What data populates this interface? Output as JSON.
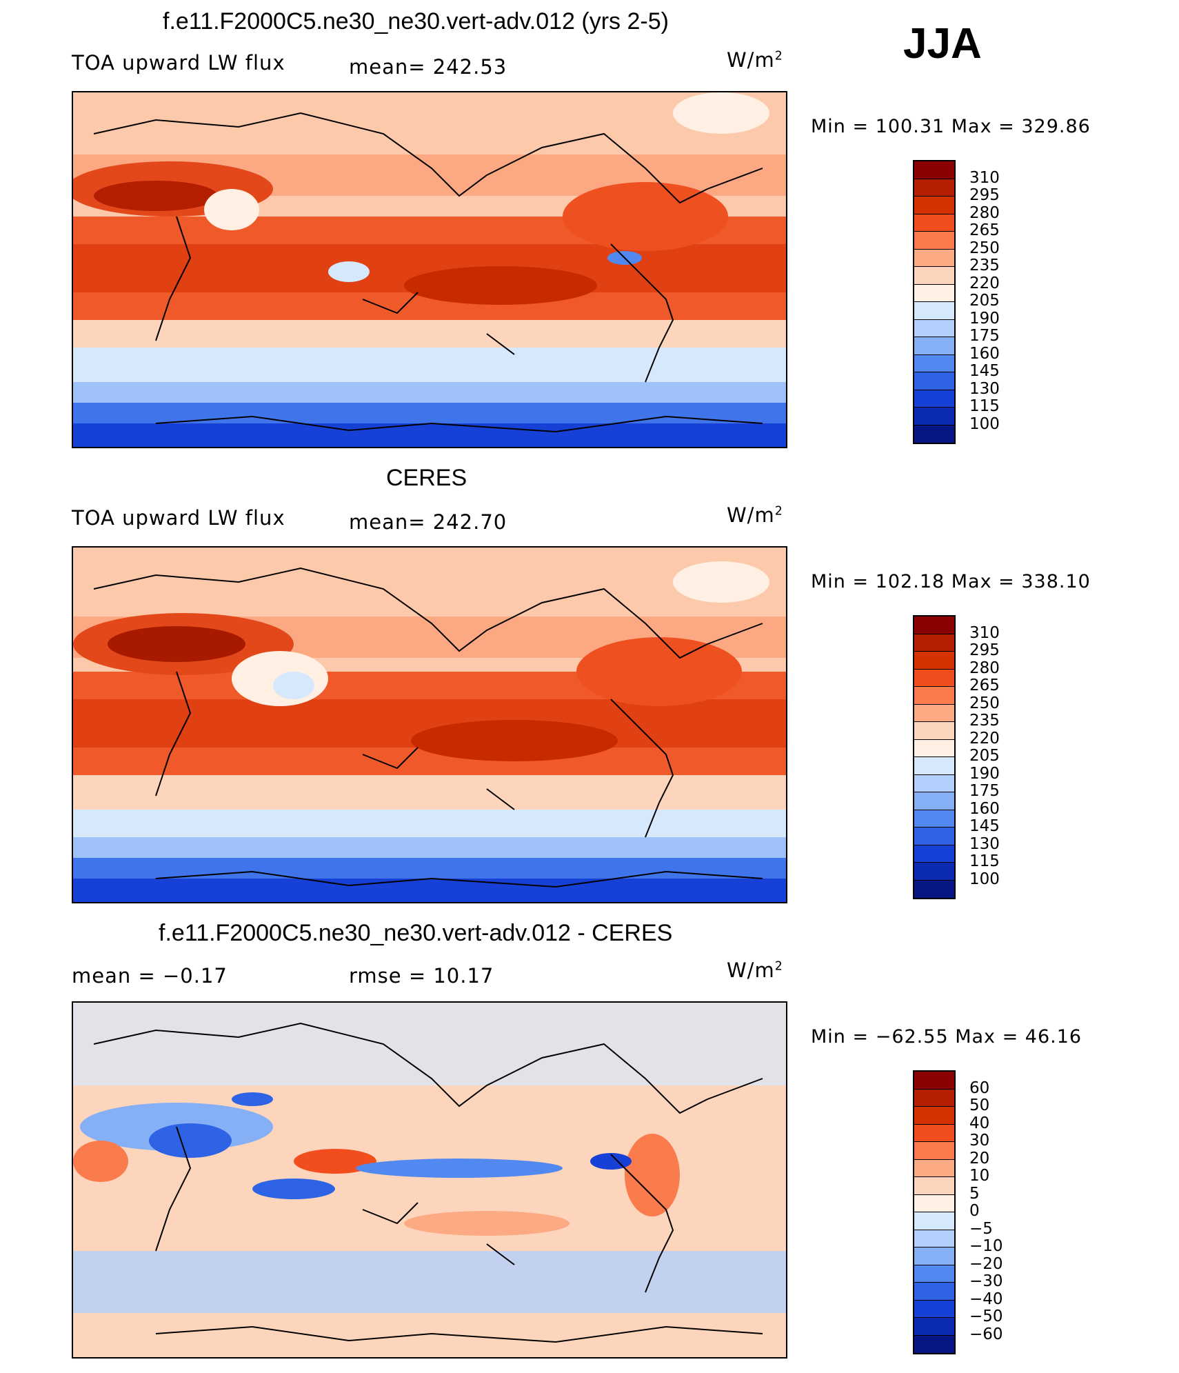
{
  "season": "JJA",
  "panels": [
    {
      "title": "f.e11.F2000C5.ne30_ne30.vert-adv.012 (yrs 2-5)",
      "variable": "TOA upward LW flux",
      "stat": "mean=  242.53",
      "units": "W/m",
      "units_sup": "2",
      "minmax": "Min  =  100.31  Max  =  329.86",
      "map_name": "model-map",
      "colorbar": {
        "colors": [
          "#8b0000",
          "#b31f00",
          "#d63200",
          "#f24e1d",
          "#fa7c4d",
          "#fcaa84",
          "#fdd5bc",
          "#fff0e3",
          "#d6e8fb",
          "#b2d0fb",
          "#86b0f6",
          "#5189f0",
          "#2e63e6",
          "#1640d6",
          "#0a2ab2",
          "#061684"
        ],
        "labels": [
          "310",
          "295",
          "280",
          "265",
          "250",
          "235",
          "220",
          "205",
          "190",
          "175",
          "160",
          "145",
          "130",
          "115",
          "100"
        ]
      }
    },
    {
      "title": "CERES",
      "variable": "TOA upward LW flux",
      "stat": "mean=  242.70",
      "units": "W/m",
      "units_sup": "2",
      "minmax": "Min  =  102.18  Max  =  338.10",
      "map_name": "observation-map",
      "colorbar": {
        "colors": [
          "#8b0000",
          "#b31f00",
          "#d63200",
          "#f24e1d",
          "#fa7c4d",
          "#fcaa84",
          "#fdd5bc",
          "#fff0e3",
          "#d6e8fb",
          "#b2d0fb",
          "#86b0f6",
          "#5189f0",
          "#2e63e6",
          "#1640d6",
          "#0a2ab2",
          "#061684"
        ],
        "labels": [
          "310",
          "295",
          "280",
          "265",
          "250",
          "235",
          "220",
          "205",
          "190",
          "175",
          "160",
          "145",
          "130",
          "115",
          "100"
        ]
      }
    },
    {
      "title": "f.e11.F2000C5.ne30_ne30.vert-adv.012 - CERES",
      "stat_left": "mean  =    −0.17",
      "stat": "rmse  =    10.17",
      "units": "W/m",
      "units_sup": "2",
      "minmax": "Min  =  −62.55  Max  =    46.16",
      "map_name": "difference-map",
      "colorbar": {
        "colors": [
          "#8b0000",
          "#b31f00",
          "#d63200",
          "#f24e1d",
          "#fa7c4d",
          "#fcaa84",
          "#fdd5bc",
          "#fff0e3",
          "#d6e8fb",
          "#b2d0fb",
          "#86b0f6",
          "#5189f0",
          "#2e63e6",
          "#1640d6",
          "#0a2ab2",
          "#061684"
        ],
        "labels": [
          "60",
          "50",
          "40",
          "30",
          "20",
          "10",
          "5",
          "0",
          "−5",
          "−10",
          "−20",
          "−30",
          "−40",
          "−50",
          "−60"
        ]
      }
    }
  ]
}
